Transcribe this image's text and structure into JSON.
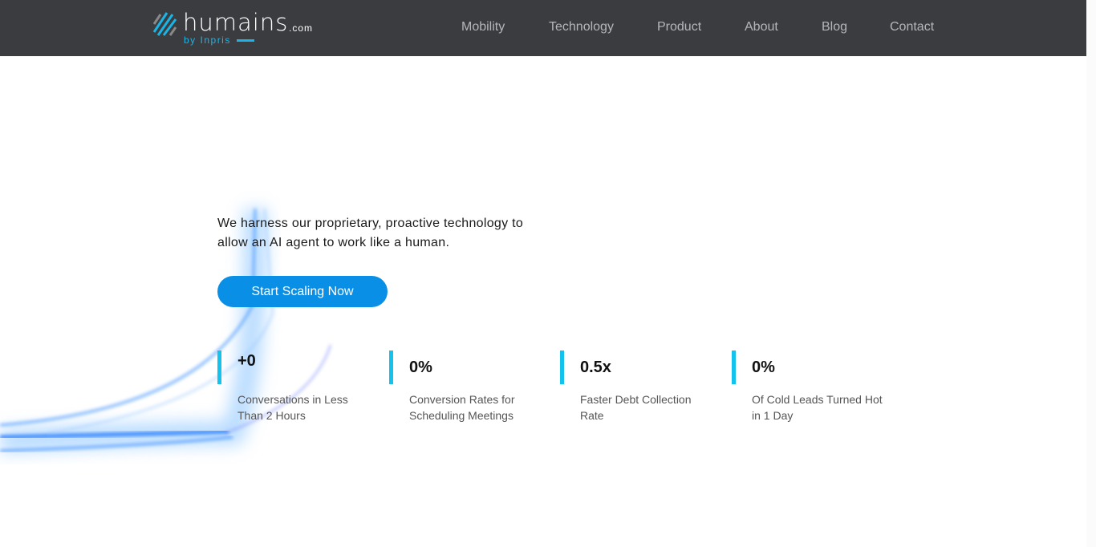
{
  "logo": {
    "word": "humains",
    "suffix": ".com",
    "byline": "by Inpris"
  },
  "nav": [
    "Mobility",
    "Technology",
    "Product",
    "About",
    "Blog",
    "Contact"
  ],
  "hero": {
    "tagline": "We harness our proprietary, proactive technology to allow an AI agent to work like a human.",
    "cta": "Start Scaling Now"
  },
  "stats": [
    {
      "value": "+0",
      "label": "Conversations in Less Than 2 Hours"
    },
    {
      "value": "0%",
      "label": "Conversion Rates for Scheduling Meetings"
    },
    {
      "value": "0.5x",
      "label": "Faster Debt Collection Rate"
    },
    {
      "value": "0%",
      "label": "Of Cold Leads Turned Hot in 1 Day"
    }
  ],
  "colors": {
    "header": "#3b3c40",
    "accent": "#14c2ee",
    "button": "#0a8fe6"
  }
}
